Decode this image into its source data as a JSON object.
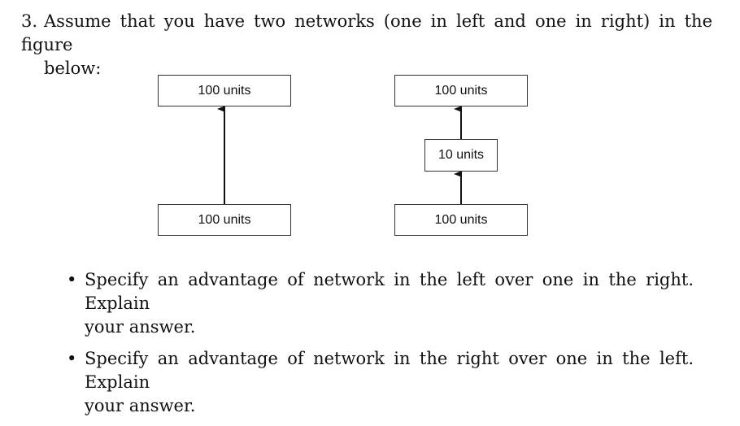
{
  "question": {
    "number": "3.",
    "line1": "Assume that you have two networks (one in left and one in right) in the figure",
    "line2": "below:"
  },
  "figure": {
    "left_network": {
      "top_label": "100 units",
      "bottom_label": "100 units"
    },
    "right_network": {
      "top_label": "100 units",
      "middle_label": "10 units",
      "bottom_label": "100 units"
    }
  },
  "bullets": [
    {
      "marker": "•",
      "line1": "Specify an advantage of network in the left over one in the right. Explain",
      "line2": "your answer."
    },
    {
      "marker": "•",
      "line1": "Specify an advantage of network in the right over one in the left. Explain",
      "line2": "your answer."
    }
  ]
}
